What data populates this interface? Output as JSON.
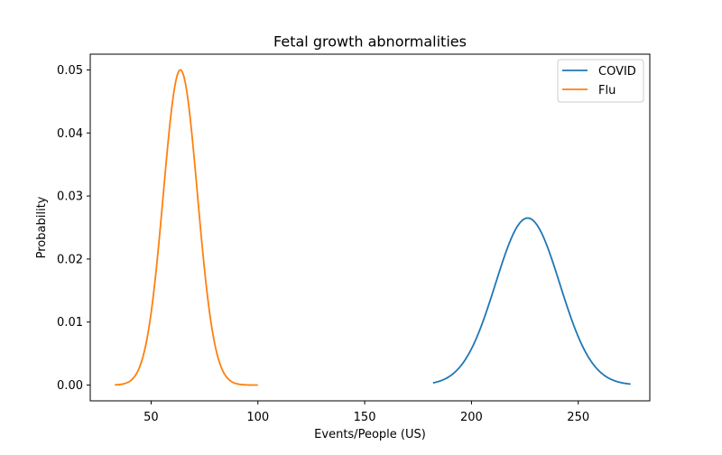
{
  "chart_data": {
    "type": "line",
    "title": "Fetal growth abnormalities",
    "xlabel": "Events/People (US)",
    "ylabel": "Probability",
    "xlim": [
      21.5,
      283.5
    ],
    "ylim": [
      -0.0025,
      0.0525
    ],
    "xticks": [
      50,
      100,
      150,
      200,
      250
    ],
    "yticks": [
      0.0,
      0.01,
      0.02,
      0.03,
      0.04,
      0.05
    ],
    "ytick_labels": [
      "0.00",
      "0.01",
      "0.02",
      "0.03",
      "0.04",
      "0.05"
    ],
    "grid": false,
    "legend": {
      "position": "top-right"
    },
    "series": [
      {
        "name": "COVID",
        "color": "#1f77b4",
        "distribution": {
          "kind": "normal",
          "mean": 226.3,
          "sd": 15.05
        },
        "x_range": [
          182,
          274.5
        ],
        "peak": 0.0265
      },
      {
        "name": "Flu",
        "color": "#ff7f0e",
        "distribution": {
          "kind": "normal",
          "mean": 63.7,
          "sd": 7.98
        },
        "x_range": [
          33,
          100
        ],
        "peak": 0.05
      }
    ]
  }
}
